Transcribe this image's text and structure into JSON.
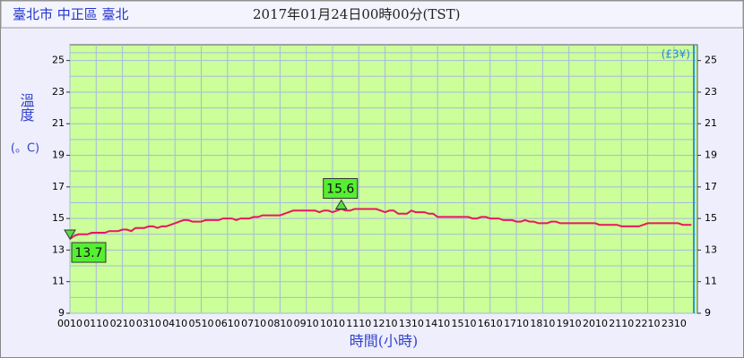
{
  "chart_data": {
    "type": "line",
    "station": "臺北市 中正區 臺北",
    "title": "2017年01月24日00時00分(TST)",
    "ylabel": "溫度",
    "yunit": "(。C)",
    "xlabel": "時間(小時)",
    "corner_note": "(£3¥)",
    "categories": [
      "0010",
      null,
      null,
      null,
      null,
      null,
      "0110",
      null,
      null,
      null,
      null,
      null,
      "0210",
      null,
      null,
      null,
      null,
      null,
      "0310",
      null,
      null,
      null,
      null,
      null,
      "0410",
      null,
      null,
      null,
      null,
      null,
      "0510",
      null,
      null,
      null,
      null,
      null,
      "0610",
      null,
      null,
      null,
      null,
      null,
      "0710",
      null,
      null,
      null,
      null,
      null,
      "0810",
      null,
      null,
      null,
      null,
      null,
      "0910",
      null,
      null,
      null,
      null,
      null,
      "1010",
      null,
      null,
      null,
      null,
      null,
      "1110",
      null,
      null,
      null,
      null,
      null,
      "1210",
      null,
      null,
      null,
      null,
      null,
      "1310",
      null,
      null,
      null,
      null,
      null,
      "1410",
      null,
      null,
      null,
      null,
      null,
      "1510",
      null,
      null,
      null,
      null,
      null,
      "1610",
      null,
      null,
      null,
      null,
      null,
      "1710",
      null,
      null,
      null,
      null,
      null,
      "1810",
      null,
      null,
      null,
      null,
      null,
      "1910",
      null,
      null,
      null,
      null,
      null,
      "2010",
      null,
      null,
      null,
      null,
      null,
      "2110",
      null,
      null,
      null,
      null,
      null,
      "2210",
      null,
      null,
      null,
      null,
      null,
      "2310",
      null,
      null,
      null,
      null
    ],
    "series": [
      {
        "name": "溫度",
        "color": "#e8175d",
        "values": [
          13.7,
          13.9,
          14.0,
          14.0,
          14.0,
          14.1,
          14.1,
          14.1,
          14.1,
          14.2,
          14.2,
          14.2,
          14.3,
          14.3,
          14.2,
          14.4,
          14.4,
          14.4,
          14.5,
          14.5,
          14.4,
          14.5,
          14.5,
          14.6,
          14.7,
          14.8,
          14.9,
          14.9,
          14.8,
          14.8,
          14.8,
          14.9,
          14.9,
          14.9,
          14.9,
          15.0,
          15.0,
          15.0,
          14.9,
          15.0,
          15.0,
          15.0,
          15.1,
          15.1,
          15.2,
          15.2,
          15.2,
          15.2,
          15.2,
          15.3,
          15.4,
          15.5,
          15.5,
          15.5,
          15.5,
          15.5,
          15.5,
          15.4,
          15.5,
          15.5,
          15.4,
          15.5,
          15.6,
          15.5,
          15.5,
          15.6,
          15.6,
          15.6,
          15.6,
          15.6,
          15.6,
          15.5,
          15.4,
          15.5,
          15.5,
          15.3,
          15.3,
          15.3,
          15.5,
          15.4,
          15.4,
          15.4,
          15.3,
          15.3,
          15.1,
          15.1,
          15.1,
          15.1,
          15.1,
          15.1,
          15.1,
          15.1,
          15.0,
          15.0,
          15.1,
          15.1,
          15.0,
          15.0,
          15.0,
          14.9,
          14.9,
          14.9,
          14.8,
          14.8,
          14.9,
          14.8,
          14.8,
          14.7,
          14.7,
          14.7,
          14.8,
          14.8,
          14.7,
          14.7,
          14.7,
          14.7,
          14.7,
          14.7,
          14.7,
          14.7,
          14.7,
          14.6,
          14.6,
          14.6,
          14.6,
          14.6,
          14.5,
          14.5,
          14.5,
          14.5,
          14.5,
          14.6,
          14.7,
          14.7,
          14.7,
          14.7,
          14.7,
          14.7,
          14.7,
          14.7,
          14.6,
          14.6,
          14.6
        ]
      }
    ],
    "ylim": [
      9,
      26
    ],
    "yticks": [
      9,
      11,
      13,
      15,
      17,
      19,
      21,
      23,
      25
    ],
    "grid": true,
    "plot_color": "#ccff99"
  }
}
